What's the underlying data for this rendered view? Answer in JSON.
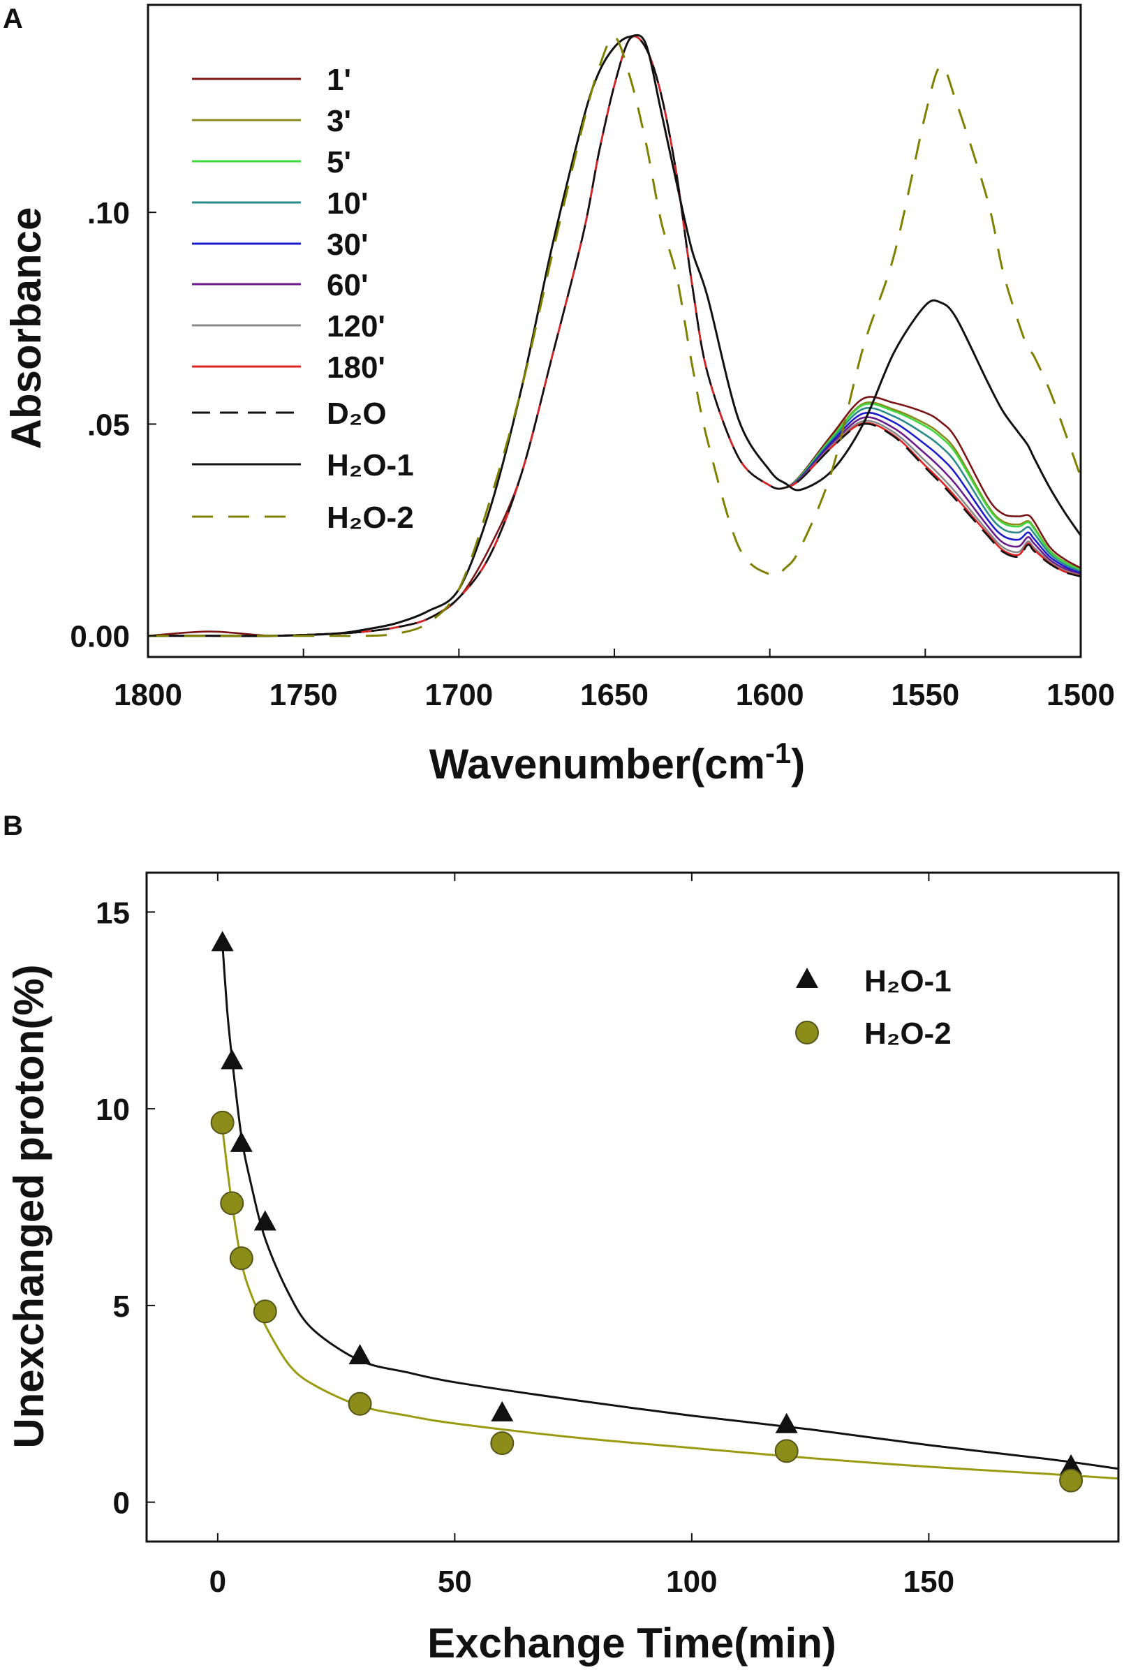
{
  "panels": {
    "a_label": "A",
    "b_label": "B"
  },
  "chart_data": [
    {
      "type": "line",
      "panel": "A",
      "xlabel_main": "Wavenumber(cm",
      "xlabel_sup": "-1",
      "xlabel_end": ")",
      "ylabel": "Absorbance",
      "xlim": [
        1800,
        1500
      ],
      "ylim": [
        -0.005,
        0.149
      ],
      "x_reversed": true,
      "grid": false,
      "legend_position": "top-left",
      "xticks": [
        1800,
        1750,
        1700,
        1650,
        1600,
        1550,
        1500
      ],
      "xtick_labels": [
        "1800",
        "1750",
        "1700",
        "1650",
        "1600",
        "1550",
        "1500"
      ],
      "yticks": [
        0,
        0.05,
        0.1
      ],
      "ytick_labels": [
        "0.00",
        ".05",
        ".10"
      ],
      "x": [
        1800,
        1780,
        1760,
        1740,
        1730,
        1720,
        1710,
        1700,
        1690,
        1680,
        1670,
        1660,
        1655,
        1650,
        1645,
        1640,
        1635,
        1630,
        1625,
        1620,
        1610,
        1600,
        1595,
        1590,
        1580,
        1570,
        1560,
        1550,
        1545,
        1540,
        1530,
        1525,
        1520,
        1517,
        1515,
        1510,
        1505,
        1500
      ],
      "series": [
        {
          "name": "1'",
          "color": "#7a1414",
          "dash": "solid",
          "values": [
            0,
            0.001,
            0,
            0.0005,
            0.001,
            0.002,
            0.004,
            0.009,
            0.021,
            0.038,
            0.066,
            0.095,
            0.114,
            0.13,
            0.141,
            0.139,
            0.128,
            0.109,
            0.083,
            0.062,
            0.042,
            0.0355,
            0.035,
            0.038,
            0.0475,
            0.056,
            0.055,
            0.0527,
            0.0505,
            0.0465,
            0.0327,
            0.0288,
            0.0282,
            0.0285,
            0.027,
            0.021,
            0.018,
            0.016
          ]
        },
        {
          "name": "3'",
          "color": "#8c8c1e",
          "dash": "solid",
          "values": [
            0,
            0,
            0,
            0.0005,
            0.001,
            0.002,
            0.004,
            0.009,
            0.019,
            0.038,
            0.066,
            0.095,
            0.114,
            0.13,
            0.141,
            0.139,
            0.128,
            0.109,
            0.083,
            0.062,
            0.042,
            0.0355,
            0.035,
            0.0378,
            0.0469,
            0.0548,
            0.0534,
            0.0501,
            0.0476,
            0.0436,
            0.0309,
            0.027,
            0.0263,
            0.0271,
            0.0256,
            0.0202,
            0.0174,
            0.0156
          ]
        },
        {
          "name": "5'",
          "color": "#3ed83e",
          "dash": "solid",
          "values": [
            0,
            0,
            0,
            0.0005,
            0.001,
            0.002,
            0.004,
            0.009,
            0.019,
            0.038,
            0.066,
            0.095,
            0.114,
            0.13,
            0.141,
            0.139,
            0.128,
            0.109,
            0.083,
            0.062,
            0.042,
            0.0355,
            0.035,
            0.0378,
            0.0468,
            0.0545,
            0.053,
            0.0495,
            0.0469,
            0.0429,
            0.0305,
            0.0266,
            0.0258,
            0.0268,
            0.0253,
            0.02,
            0.0173,
            0.0155
          ]
        },
        {
          "name": "10'",
          "color": "#2a8a8a",
          "dash": "solid",
          "values": [
            0,
            0,
            0,
            0.0005,
            0.001,
            0.002,
            0.004,
            0.009,
            0.019,
            0.038,
            0.066,
            0.095,
            0.114,
            0.13,
            0.141,
            0.139,
            0.128,
            0.109,
            0.083,
            0.062,
            0.042,
            0.0355,
            0.035,
            0.0376,
            0.0463,
            0.0536,
            0.0518,
            0.0475,
            0.0447,
            0.0407,
            0.0291,
            0.0252,
            0.0244,
            0.0257,
            0.0242,
            0.0194,
            0.0168,
            0.0152
          ]
        },
        {
          "name": "30'",
          "color": "#1a1acc",
          "dash": "solid",
          "values": [
            0,
            0,
            0,
            0.0005,
            0.001,
            0.002,
            0.004,
            0.009,
            0.019,
            0.038,
            0.066,
            0.095,
            0.114,
            0.13,
            0.141,
            0.139,
            0.128,
            0.109,
            0.083,
            0.062,
            0.042,
            0.0355,
            0.035,
            0.0374,
            0.0458,
            0.0525,
            0.0504,
            0.0452,
            0.0421,
            0.0381,
            0.0275,
            0.0236,
            0.0227,
            0.0244,
            0.0229,
            0.0187,
            0.0163,
            0.0148
          ]
        },
        {
          "name": "60'",
          "color": "#6a1a8a",
          "dash": "solid",
          "values": [
            0,
            0,
            0,
            0.0005,
            0.001,
            0.002,
            0.004,
            0.009,
            0.019,
            0.038,
            0.066,
            0.095,
            0.114,
            0.13,
            0.141,
            0.139,
            0.128,
            0.109,
            0.083,
            0.062,
            0.042,
            0.0355,
            0.035,
            0.0373,
            0.0453,
            0.0515,
            0.049,
            0.043,
            0.0396,
            0.0356,
            0.026,
            0.022,
            0.0211,
            0.0233,
            0.0218,
            0.018,
            0.0158,
            0.0145
          ]
        },
        {
          "name": "120'",
          "color": "#8a8a8a",
          "dash": "solid",
          "values": [
            0,
            0,
            0,
            0.0005,
            0.001,
            0.002,
            0.004,
            0.009,
            0.019,
            0.038,
            0.066,
            0.095,
            0.114,
            0.13,
            0.141,
            0.139,
            0.128,
            0.109,
            0.083,
            0.062,
            0.042,
            0.0355,
            0.035,
            0.0371,
            0.0449,
            0.0507,
            0.048,
            0.0413,
            0.0377,
            0.0337,
            0.0248,
            0.0209,
            0.0198,
            0.0223,
            0.0208,
            0.0175,
            0.0154,
            0.0142
          ]
        },
        {
          "name": "180'",
          "color": "#dd2222",
          "dash": "solid",
          "values": [
            0,
            0,
            0,
            0.0005,
            0.001,
            0.002,
            0.004,
            0.009,
            0.019,
            0.038,
            0.066,
            0.095,
            0.114,
            0.13,
            0.141,
            0.139,
            0.128,
            0.109,
            0.083,
            0.062,
            0.042,
            0.0355,
            0.035,
            0.037,
            0.0446,
            0.0502,
            0.0473,
            0.0402,
            0.0366,
            0.0326,
            0.0241,
            0.0202,
            0.0191,
            0.0218,
            0.0203,
            0.0172,
            0.0151,
            0.0141
          ]
        },
        {
          "name": "D₂O",
          "color": "#111111",
          "dash": "dashed",
          "values": [
            0,
            0,
            0,
            0.0005,
            0.001,
            0.002,
            0.004,
            0.009,
            0.019,
            0.038,
            0.066,
            0.095,
            0.114,
            0.13,
            0.141,
            0.139,
            0.128,
            0.109,
            0.083,
            0.062,
            0.042,
            0.0355,
            0.035,
            0.037,
            0.0445,
            0.05,
            0.047,
            0.0397,
            0.036,
            0.032,
            0.0237,
            0.0198,
            0.0187,
            0.0215,
            0.02,
            0.017,
            0.015,
            0.014
          ]
        },
        {
          "name": "H₂O-1",
          "color": "#111111",
          "dash": "solid",
          "values": [
            0,
            0,
            0,
            0.0005,
            0.0015,
            0.003,
            0.0058,
            0.011,
            0.03,
            0.058,
            0.092,
            0.122,
            0.133,
            0.139,
            0.1415,
            0.14,
            0.124,
            0.107,
            0.091,
            0.08,
            0.051,
            0.039,
            0.036,
            0.0345,
            0.039,
            0.05,
            0.067,
            0.078,
            0.0787,
            0.075,
            0.06,
            0.053,
            0.048,
            0.045,
            0.042,
            0.035,
            0.029,
            0.0237
          ]
        },
        {
          "name": "H₂O-2",
          "color": "#808000",
          "dash": "longdash",
          "values": [
            0,
            0,
            0,
            0,
            0,
            0.0005,
            0.003,
            0.011,
            0.032,
            0.058,
            0.09,
            0.121,
            0.134,
            0.1415,
            0.132,
            0.117,
            0.098,
            0.085,
            0.064,
            0.046,
            0.021,
            0.0145,
            0.016,
            0.021,
            0.039,
            0.068,
            0.09,
            0.123,
            0.1345,
            0.126,
            0.103,
            0.086,
            0.074,
            0.068,
            0.066,
            0.058,
            0.048,
            0.0375
          ]
        }
      ]
    },
    {
      "type": "scatter",
      "panel": "B",
      "xlabel": "Exchange Time(min)",
      "ylabel": "Unexchanged proton(%)",
      "xlim": [
        -15,
        190
      ],
      "ylim": [
        -1,
        16
      ],
      "grid": false,
      "legend_position": "top-right",
      "xticks": [
        0,
        50,
        100,
        150
      ],
      "xtick_labels": [
        "0",
        "50",
        "100",
        "150"
      ],
      "yticks": [
        0,
        5,
        10,
        15
      ],
      "ytick_labels": [
        "0",
        "5",
        "10",
        "15"
      ],
      "series": [
        {
          "name": "H₂O-1",
          "marker": "triangle",
          "color": "#111111",
          "line_color": "#111111",
          "x": [
            1,
            3,
            5,
            10,
            30,
            60,
            120,
            180
          ],
          "y": [
            14.2,
            11.2,
            9.1,
            7.1,
            3.7,
            2.25,
            1.95,
            0.9
          ],
          "fit_x": [
            1,
            2,
            3,
            5,
            7,
            10,
            15,
            20,
            30,
            40,
            50,
            75,
            100,
            125,
            150,
            175,
            190
          ],
          "fit_y": [
            14.2,
            12.5,
            11.3,
            9.3,
            8.1,
            6.7,
            5.3,
            4.4,
            3.6,
            3.3,
            3.05,
            2.6,
            2.2,
            1.85,
            1.45,
            1.1,
            0.85
          ]
        },
        {
          "name": "H₂O-2",
          "marker": "circle",
          "color": "#8c8c1a",
          "line_color": "#9a9a10",
          "x": [
            1,
            3,
            5,
            10,
            30,
            60,
            120,
            180
          ],
          "y": [
            9.65,
            7.6,
            6.2,
            4.85,
            2.5,
            1.5,
            1.3,
            0.55
          ],
          "fit_x": [
            1,
            2,
            3,
            5,
            7,
            10,
            15,
            20,
            30,
            40,
            50,
            75,
            100,
            125,
            150,
            175,
            190
          ],
          "fit_y": [
            9.5,
            8.5,
            7.6,
            6.1,
            5.3,
            4.5,
            3.5,
            3.0,
            2.45,
            2.2,
            2.0,
            1.65,
            1.38,
            1.12,
            0.9,
            0.72,
            0.6
          ]
        }
      ]
    }
  ]
}
